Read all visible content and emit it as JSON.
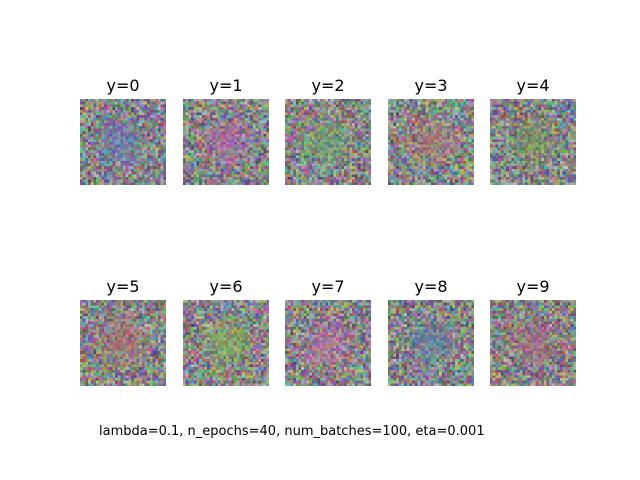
{
  "figure": {
    "panels": [
      {
        "title": "y=0",
        "tint": "#5a7ad0"
      },
      {
        "title": "y=1",
        "tint": "#c050c0"
      },
      {
        "title": "y=2",
        "tint": "#60b060"
      },
      {
        "title": "y=3",
        "tint": "#b87070"
      },
      {
        "title": "y=4",
        "tint": "#70a040"
      },
      {
        "title": "y=5",
        "tint": "#c06060"
      },
      {
        "title": "y=6",
        "tint": "#80c040"
      },
      {
        "title": "y=7",
        "tint": "#d060b0"
      },
      {
        "title": "y=8",
        "tint": "#5080b0"
      },
      {
        "title": "y=9",
        "tint": "#b06080"
      }
    ],
    "caption": "lambda=0.1, n_epochs=40, num_batches=100, eta=0.001"
  }
}
